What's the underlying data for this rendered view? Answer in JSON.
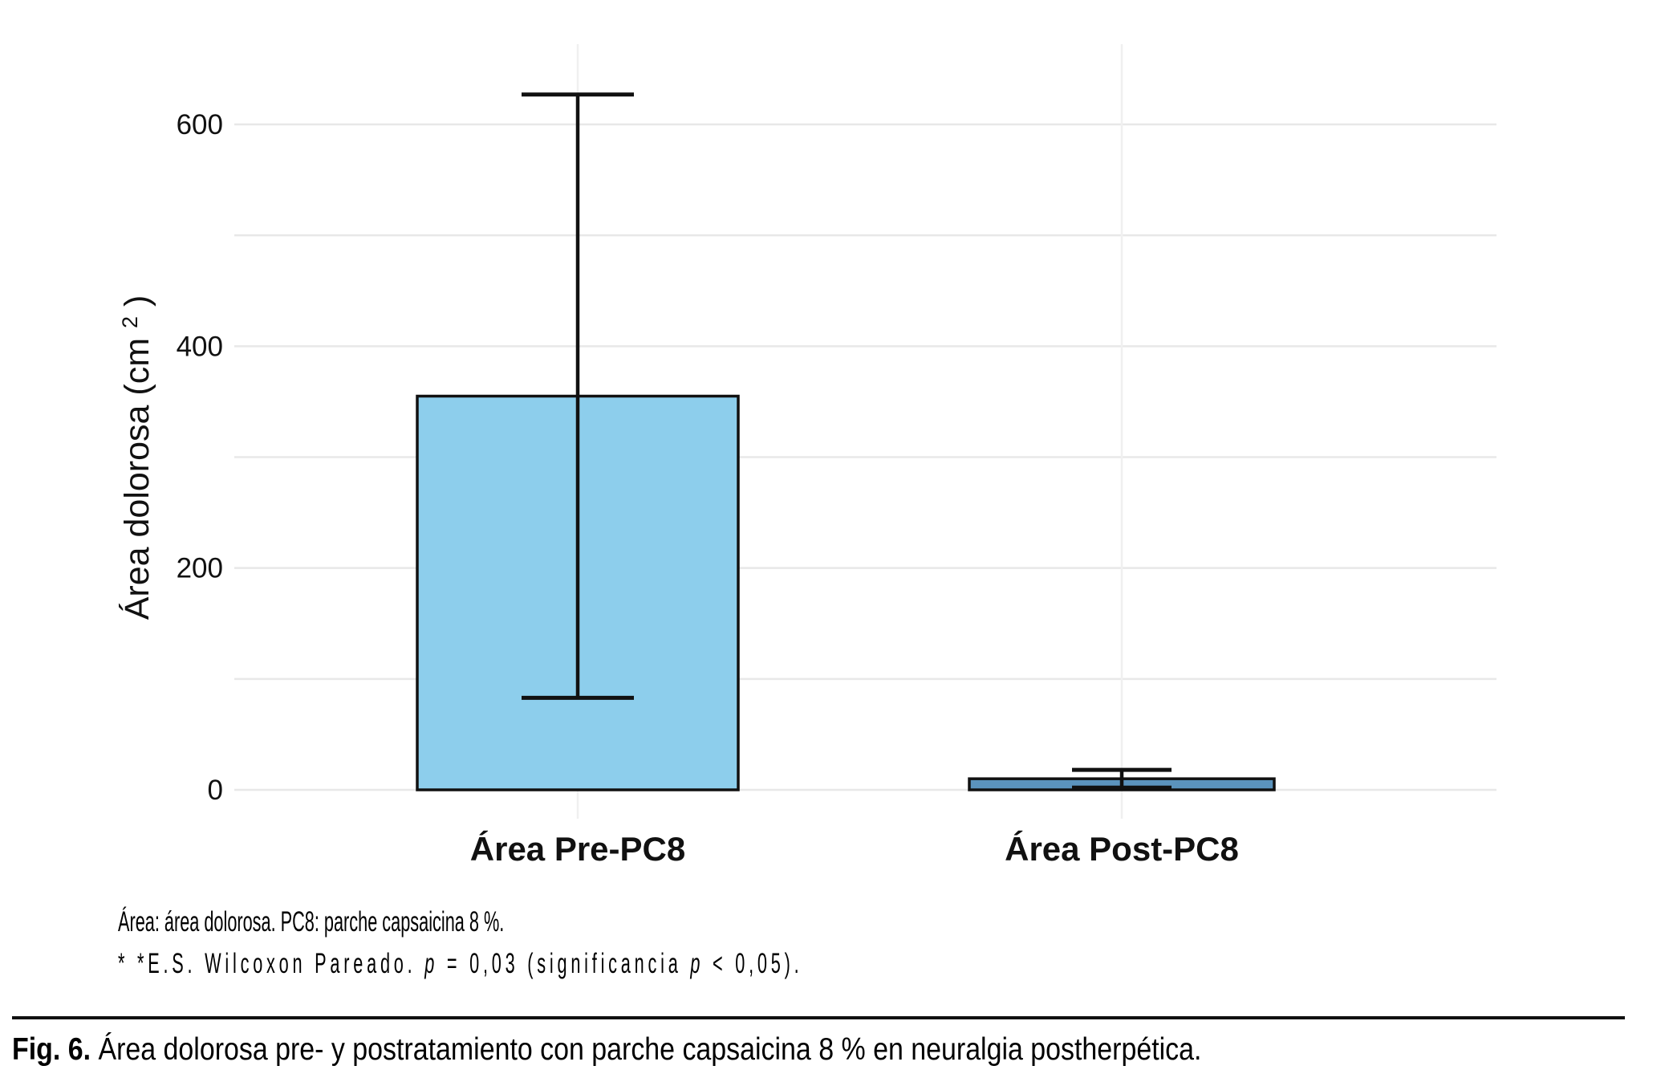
{
  "figure": {
    "footnote_line1": "Área: área dolorosa. PC8: parche capsaicina 8 %.",
    "footnote_line2": {
      "part1": "* *E.S. Wilcoxon Pareado. ",
      "p1": "p",
      "part2": " = 0,03 (significancia ",
      "p2": "p",
      "part3": " < 0,05)."
    },
    "caption_label": "Fig. 6.",
    "caption_text": " Área dolorosa pre- y postratamiento con parche capsaicina 8 % en neuralgia postherpética."
  },
  "chart_data": {
    "type": "bar",
    "categories": [
      "Área Pre-PC8",
      "Área Post-PC8"
    ],
    "values": [
      355,
      10
    ],
    "error_low": [
      83,
      2
    ],
    "error_high": [
      627,
      18
    ],
    "title": "",
    "xlabel": "",
    "ylabel": "Área dolorosa (cm²)",
    "ylabel_parts": {
      "pre": "Área dolorosa (cm",
      "sup": "2",
      "post": ")"
    },
    "yticks": [
      0,
      200,
      400,
      600
    ],
    "ygrid": [
      0,
      100,
      200,
      300,
      400,
      500,
      600
    ],
    "ylim": [
      -25,
      670
    ],
    "grid": true,
    "legend": false,
    "bar_fill_colors": [
      "#8DCEEC",
      "#5B93BD"
    ],
    "bar_edge_color": "#111111",
    "error_bar_color": "#111111",
    "gridline_color": "#E8E8E8"
  }
}
